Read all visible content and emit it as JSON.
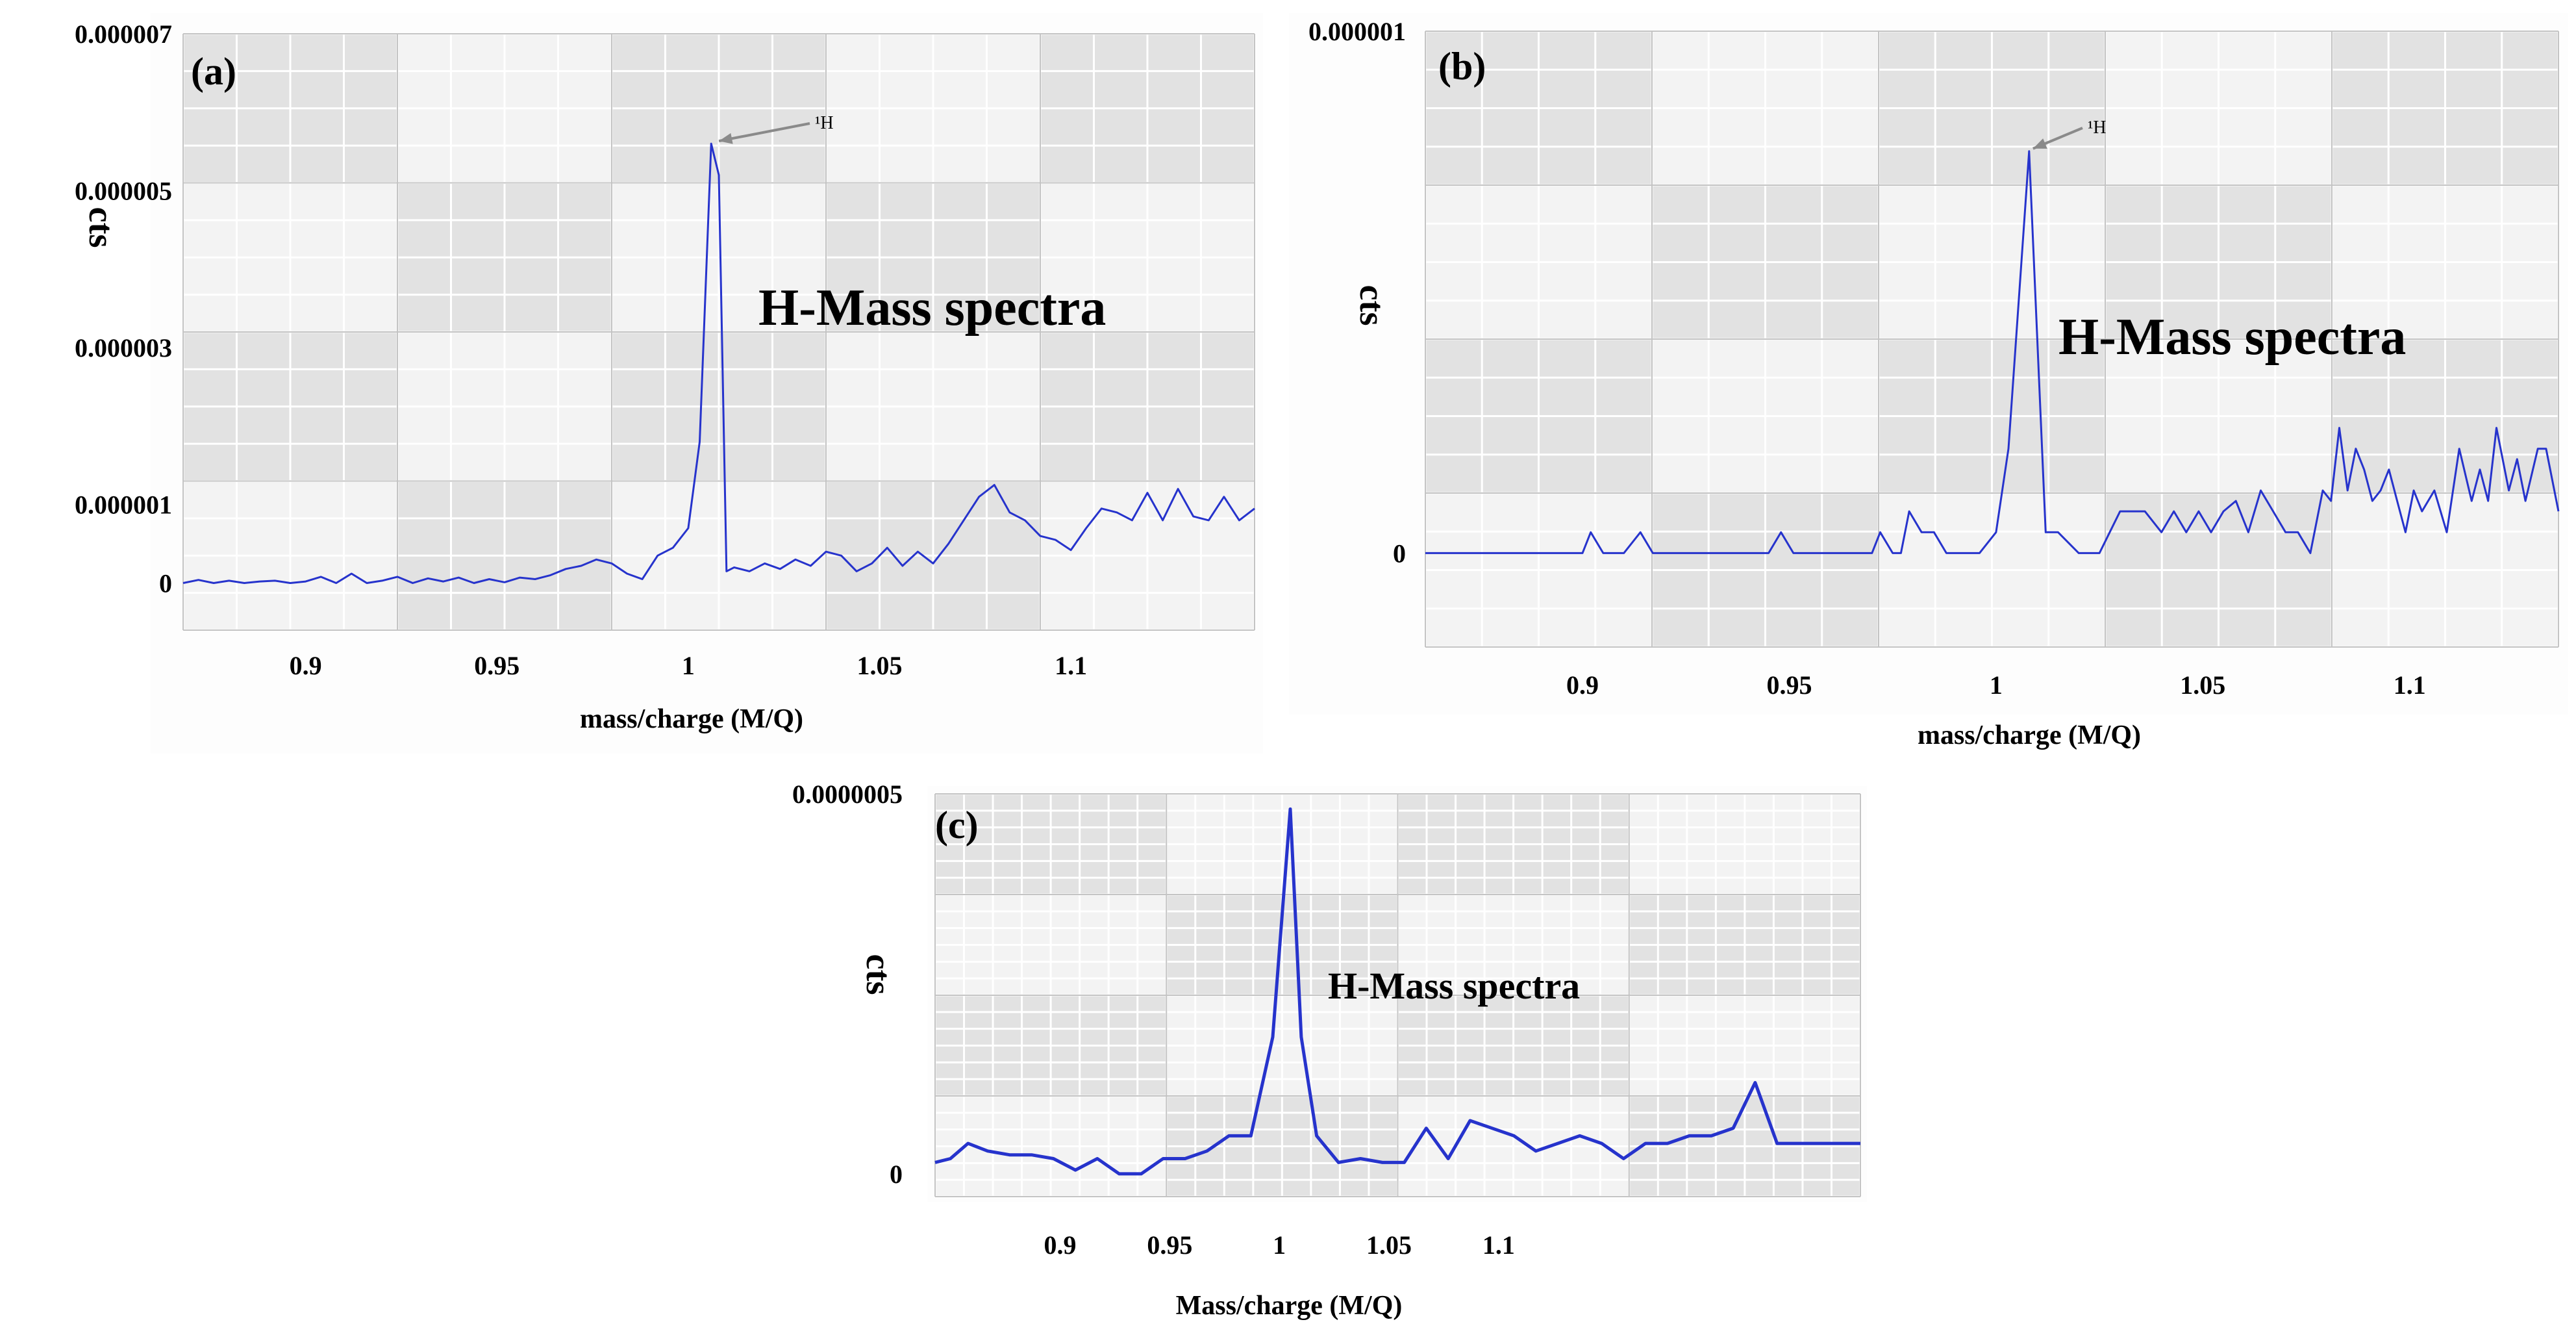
{
  "chart_data": [
    {
      "type": "line",
      "panel_label": "(a)",
      "title": "",
      "xlabel": "mass/charge (M/Q)",
      "ylabel": "cts",
      "xlim": [
        0.868,
        1.148
      ],
      "ylim": [
        -6e-07,
        7e-06
      ],
      "x_ticks": [
        0.9,
        0.95,
        1,
        1.05,
        1.1
      ],
      "x_tick_labels": [
        "0.9",
        "0.95",
        "1",
        "1.05",
        "1.1"
      ],
      "y_ticks": [
        0,
        1e-06,
        3e-06,
        5e-06,
        7e-06
      ],
      "y_tick_labels": [
        "0",
        "0.000001",
        "0.000003",
        "0.000005",
        "0.000007"
      ],
      "annotation": "H-Mass spectra",
      "peak_label": "¹H",
      "peak_at": [
        1.007,
        5.6e-06
      ],
      "series": [
        {
          "name": "H",
          "color": "#2633cc",
          "x": [
            0.868,
            0.872,
            0.876,
            0.88,
            0.884,
            0.888,
            0.892,
            0.896,
            0.9,
            0.904,
            0.908,
            0.912,
            0.916,
            0.92,
            0.924,
            0.928,
            0.932,
            0.936,
            0.94,
            0.944,
            0.948,
            0.952,
            0.956,
            0.96,
            0.964,
            0.968,
            0.972,
            0.976,
            0.98,
            0.984,
            0.988,
            0.992,
            0.996,
            1.0,
            1.003,
            1.006,
            1.008,
            1.01,
            1.012,
            1.016,
            1.02,
            1.024,
            1.028,
            1.032,
            1.036,
            1.04,
            1.044,
            1.048,
            1.052,
            1.056,
            1.06,
            1.064,
            1.068,
            1.072,
            1.076,
            1.08,
            1.084,
            1.088,
            1.092,
            1.096,
            1.1,
            1.104,
            1.108,
            1.112,
            1.116,
            1.12,
            1.124,
            1.128,
            1.132,
            1.136,
            1.14,
            1.144,
            1.148
          ],
          "values": [
            0.0,
            4e-08,
            0.0,
            3e-08,
            0.0,
            2e-08,
            3e-08,
            0.0,
            2e-08,
            8e-08,
            0.0,
            1.2e-07,
            0.0,
            3e-08,
            8e-08,
            0.0,
            6e-08,
            2e-08,
            7e-08,
            0.0,
            5e-08,
            1e-08,
            7e-08,
            5e-08,
            1e-07,
            1.8e-07,
            2.2e-07,
            3e-07,
            2.5e-07,
            1.2e-07,
            5e-08,
            3.5e-07,
            4.5e-07,
            7e-07,
            1.8e-06,
            5.6e-06,
            5.2e-06,
            1.5e-07,
            2e-07,
            1.5e-07,
            2.5e-07,
            1.8e-07,
            3e-07,
            2.2e-07,
            4e-07,
            3.5e-07,
            1.5e-07,
            2.5e-07,
            4.5e-07,
            2.2e-07,
            4e-07,
            2.5e-07,
            5e-07,
            8e-07,
            1.1e-06,
            1.25e-06,
            9e-07,
            8e-07,
            6e-07,
            5.5e-07,
            4.2e-07,
            7e-07,
            9.5e-07,
            9e-07,
            8e-07,
            1.15e-06,
            8e-07,
            1.2e-06,
            8.5e-07,
            8e-07,
            1.1e-06,
            8e-07,
            9.5e-07
          ]
        }
      ]
    },
    {
      "type": "line",
      "panel_label": "(b)",
      "title": "",
      "xlabel": "mass/charge (M/Q)",
      "ylabel": "cts",
      "xlim": [
        0.862,
        1.136
      ],
      "ylim": [
        -1.8e-07,
        1e-06
      ],
      "x_ticks": [
        0.9,
        0.95,
        1,
        1.05,
        1.1
      ],
      "x_tick_labels": [
        "0.9",
        "0.95",
        "1",
        "1.05",
        "1.1"
      ],
      "y_ticks": [
        0,
        1e-06
      ],
      "y_tick_labels": [
        "0",
        "0.000001"
      ],
      "annotation": "H-Mass spectra",
      "peak_label": "¹H",
      "peak_at": [
        1.008,
        7.7e-07
      ],
      "series": [
        {
          "name": "H",
          "color": "#2633cc",
          "x": [
            0.862,
            0.9,
            0.902,
            0.905,
            0.91,
            0.914,
            0.917,
            0.92,
            0.945,
            0.948,
            0.951,
            0.97,
            0.972,
            0.975,
            0.977,
            0.979,
            0.982,
            0.985,
            0.988,
            0.992,
            0.996,
            1.0,
            1.003,
            1.008,
            1.012,
            1.015,
            1.02,
            1.025,
            1.03,
            1.033,
            1.036,
            1.04,
            1.043,
            1.046,
            1.049,
            1.052,
            1.055,
            1.058,
            1.061,
            1.064,
            1.067,
            1.07,
            1.073,
            1.076,
            1.079,
            1.081,
            1.083,
            1.085,
            1.087,
            1.089,
            1.091,
            1.093,
            1.095,
            1.097,
            1.099,
            1.101,
            1.103,
            1.106,
            1.109,
            1.112,
            1.115,
            1.117,
            1.119,
            1.121,
            1.124,
            1.126,
            1.128,
            1.131,
            1.133,
            1.136
          ],
          "values": [
            0.0,
            0.0,
            4e-08,
            0.0,
            0.0,
            4e-08,
            0.0,
            0.0,
            0.0,
            4e-08,
            0.0,
            0.0,
            4e-08,
            0.0,
            0.0,
            8e-08,
            4e-08,
            4e-08,
            0.0,
            0.0,
            0.0,
            4e-08,
            2e-07,
            7.7e-07,
            4e-08,
            4e-08,
            0.0,
            0.0,
            8e-08,
            8e-08,
            8e-08,
            4e-08,
            8e-08,
            4e-08,
            8e-08,
            4e-08,
            8e-08,
            1e-07,
            4e-08,
            1.2e-07,
            8e-08,
            4e-08,
            4e-08,
            0.0,
            1.2e-07,
            1e-07,
            2.4e-07,
            1.2e-07,
            2e-07,
            1.6e-07,
            1e-07,
            1.2e-07,
            1.6e-07,
            1e-07,
            4e-08,
            1.2e-07,
            8e-08,
            1.2e-07,
            4e-08,
            2e-07,
            1e-07,
            1.6e-07,
            1e-07,
            2.4e-07,
            1.2e-07,
            1.8e-07,
            1e-07,
            2e-07,
            2e-07,
            8e-08
          ]
        }
      ]
    },
    {
      "type": "line",
      "panel_label": "(c)",
      "title": "",
      "xlabel": "Mass/charge (M/Q)",
      "ylabel": "cts",
      "xlim": [
        0.843,
        1.265
      ],
      "ylim": [
        -3e-08,
        5e-07
      ],
      "x_ticks": [
        0.9,
        0.95,
        1,
        1.05,
        1.1
      ],
      "x_tick_labels": [
        "0.9",
        "0.95",
        "1",
        "1.05",
        "1.1"
      ],
      "y_ticks": [
        0,
        5e-07
      ],
      "y_tick_labels": [
        "0",
        "0.0000005"
      ],
      "annotation": "H-Mass spectra",
      "series": [
        {
          "name": "H",
          "color": "#2633cc",
          "x": [
            0.843,
            0.85,
            0.858,
            0.867,
            0.877,
            0.887,
            0.897,
            0.907,
            0.917,
            0.927,
            0.937,
            0.947,
            0.957,
            0.967,
            0.977,
            0.987,
            0.997,
            1.005,
            1.01,
            1.017,
            1.027,
            1.037,
            1.047,
            1.057,
            1.067,
            1.077,
            1.087,
            1.097,
            1.107,
            1.117,
            1.127,
            1.137,
            1.147,
            1.157,
            1.167,
            1.177,
            1.187,
            1.197,
            1.207,
            1.217,
            1.227,
            1.237,
            1.247,
            1.257,
            1.265
          ],
          "values": [
            1.5e-08,
            2e-08,
            4e-08,
            3e-08,
            2.5e-08,
            2.5e-08,
            2e-08,
            5e-09,
            2e-08,
            0.0,
            0.0,
            2e-08,
            2e-08,
            3e-08,
            5e-08,
            5e-08,
            1.8e-07,
            4.8e-07,
            1.8e-07,
            5e-08,
            1.5e-08,
            2e-08,
            1.5e-08,
            1.5e-08,
            6e-08,
            2e-08,
            7e-08,
            6e-08,
            5e-08,
            3e-08,
            4e-08,
            5e-08,
            4e-08,
            2e-08,
            4e-08,
            4e-08,
            5e-08,
            5e-08,
            6e-08,
            1.2e-07,
            4e-08,
            4e-08,
            4e-08,
            4e-08,
            4e-08
          ]
        }
      ]
    }
  ]
}
